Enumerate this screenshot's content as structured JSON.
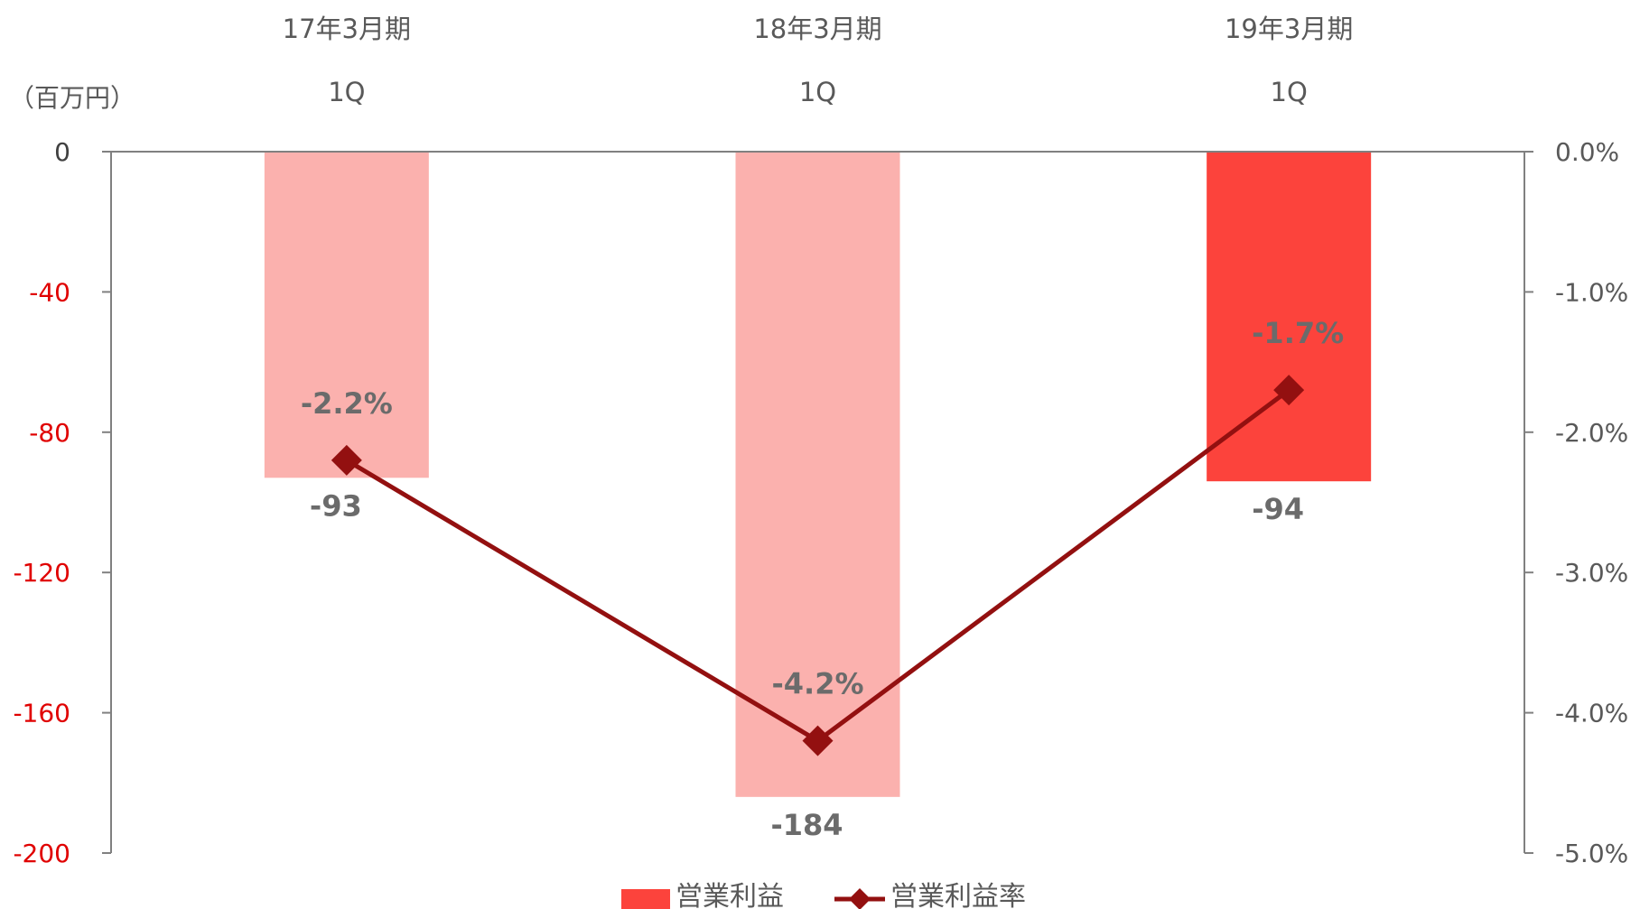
{
  "chart_data": {
    "type": "bar",
    "categories": [
      {
        "year": "17年3月期",
        "quarter": "1Q"
      },
      {
        "year": "18年3月期",
        "quarter": "1Q"
      },
      {
        "year": "19年3月期",
        "quarter": "1Q"
      }
    ],
    "unit_label": "（百万円）",
    "y_left": {
      "min": -200,
      "max": 0,
      "ticks": [
        "0",
        "-40",
        "-80",
        "-120",
        "-160",
        "-200"
      ],
      "tick_values": [
        0,
        -40,
        -80,
        -120,
        -160,
        -200
      ]
    },
    "y_right": {
      "min": -5.0,
      "max": 0.0,
      "ticks": [
        "0.0%",
        "-1.0%",
        "-2.0%",
        "-3.0%",
        "-4.0%",
        "-5.0%"
      ],
      "tick_values": [
        0,
        -1,
        -2,
        -3,
        -4,
        -5
      ]
    },
    "series": [
      {
        "name": "営業利益",
        "kind": "bar",
        "axis": "left",
        "values": [
          -93,
          -184,
          -94
        ],
        "labels": [
          "-93",
          "-184",
          "-94"
        ],
        "colors": [
          "#fbb1ae",
          "#fbb1ae",
          "#fc433c"
        ]
      },
      {
        "name": "営業利益率",
        "kind": "line",
        "axis": "right",
        "values": [
          -2.2,
          -4.2,
          -1.7
        ],
        "labels": [
          "-2.2%",
          "-4.2%",
          "-1.7%"
        ],
        "color": "#931010"
      }
    ],
    "legend": {
      "placement": "bottom",
      "items": [
        "営業利益",
        "営業利益率"
      ]
    },
    "grid": false,
    "left_tick_color": "#e00000"
  }
}
